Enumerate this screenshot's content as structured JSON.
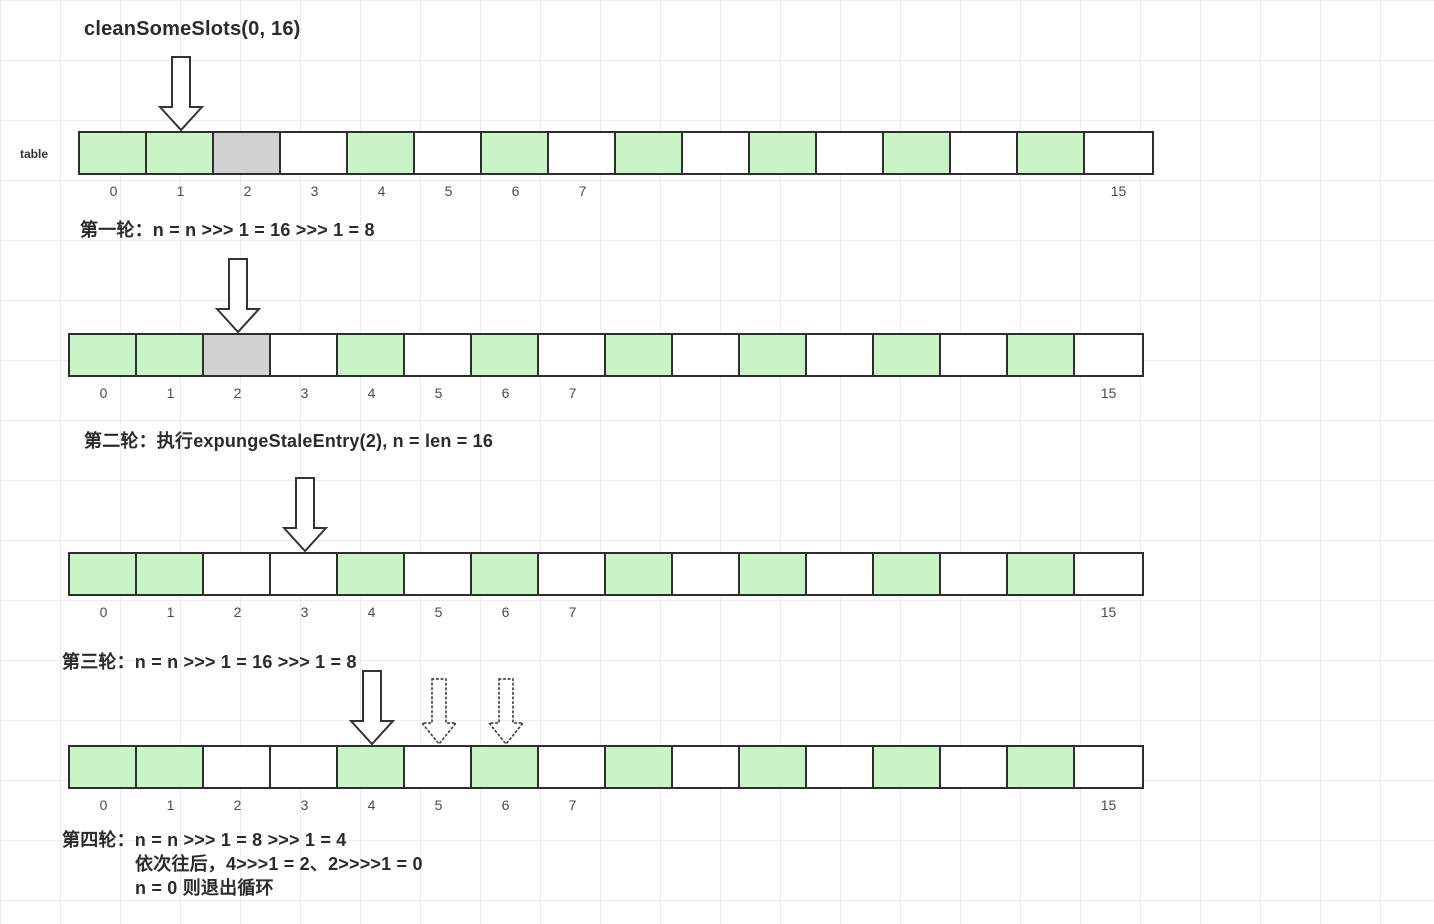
{
  "title": "cleanSomeSlots(0, 16)",
  "table_label": "table",
  "colors": {
    "green": "#c9f4c5",
    "gray": "#d1d1d1",
    "white": "#ffffff",
    "border": "#2e2e2e"
  },
  "captions": {
    "round1": "第一轮：n = n >>> 1 = 16 >>>  1 = 8",
    "round2": "第二轮：执行expungeStaleEntry(2), n = len = 16",
    "round3": "第三轮：n = n >>> 1 = 16 >>> 1  = 8",
    "round4_line1": "第四轮：n = n >>> 1 = 8 >>> 1 = 4",
    "round4_line2": "依次往后，4>>>1 = 2、2>>>>1 = 0",
    "round4_line3": "n = 0 则退出循环"
  },
  "arrays": [
    {
      "id": "table-state-1",
      "cells": [
        "green",
        "green",
        "gray",
        "white",
        "green",
        "white",
        "green",
        "white",
        "green",
        "white",
        "green",
        "white",
        "green",
        "white",
        "green",
        "white"
      ],
      "index_labels": [
        "0",
        "1",
        "2",
        "3",
        "4",
        "5",
        "6",
        "7",
        "",
        "",
        "",
        "",
        "",
        "",
        "",
        "15"
      ],
      "arrows": [
        {
          "style": "solid",
          "cell": 1
        }
      ]
    },
    {
      "id": "table-state-2",
      "cells": [
        "green",
        "green",
        "gray",
        "white",
        "green",
        "white",
        "green",
        "white",
        "green",
        "white",
        "green",
        "white",
        "green",
        "white",
        "green",
        "white"
      ],
      "index_labels": [
        "0",
        "1",
        "2",
        "3",
        "4",
        "5",
        "6",
        "7",
        "",
        "",
        "",
        "",
        "",
        "",
        "",
        "15"
      ],
      "arrows": [
        {
          "style": "solid",
          "cell": 2
        }
      ]
    },
    {
      "id": "table-state-3",
      "cells": [
        "green",
        "green",
        "white",
        "white",
        "green",
        "white",
        "green",
        "white",
        "green",
        "white",
        "green",
        "white",
        "green",
        "white",
        "green",
        "white"
      ],
      "index_labels": [
        "0",
        "1",
        "2",
        "3",
        "4",
        "5",
        "6",
        "7",
        "",
        "",
        "",
        "",
        "",
        "",
        "",
        "15"
      ],
      "arrows": [
        {
          "style": "solid",
          "cell": 3
        }
      ]
    },
    {
      "id": "table-state-4",
      "cells": [
        "green",
        "green",
        "white",
        "white",
        "green",
        "white",
        "green",
        "white",
        "green",
        "white",
        "green",
        "white",
        "green",
        "white",
        "green",
        "white"
      ],
      "index_labels": [
        "0",
        "1",
        "2",
        "3",
        "4",
        "5",
        "6",
        "7",
        "",
        "",
        "",
        "",
        "",
        "",
        "",
        "15"
      ],
      "arrows": [
        {
          "style": "solid",
          "cell": 4
        },
        {
          "style": "dotted",
          "cell": 5
        },
        {
          "style": "dotted",
          "cell": 6
        }
      ]
    }
  ]
}
